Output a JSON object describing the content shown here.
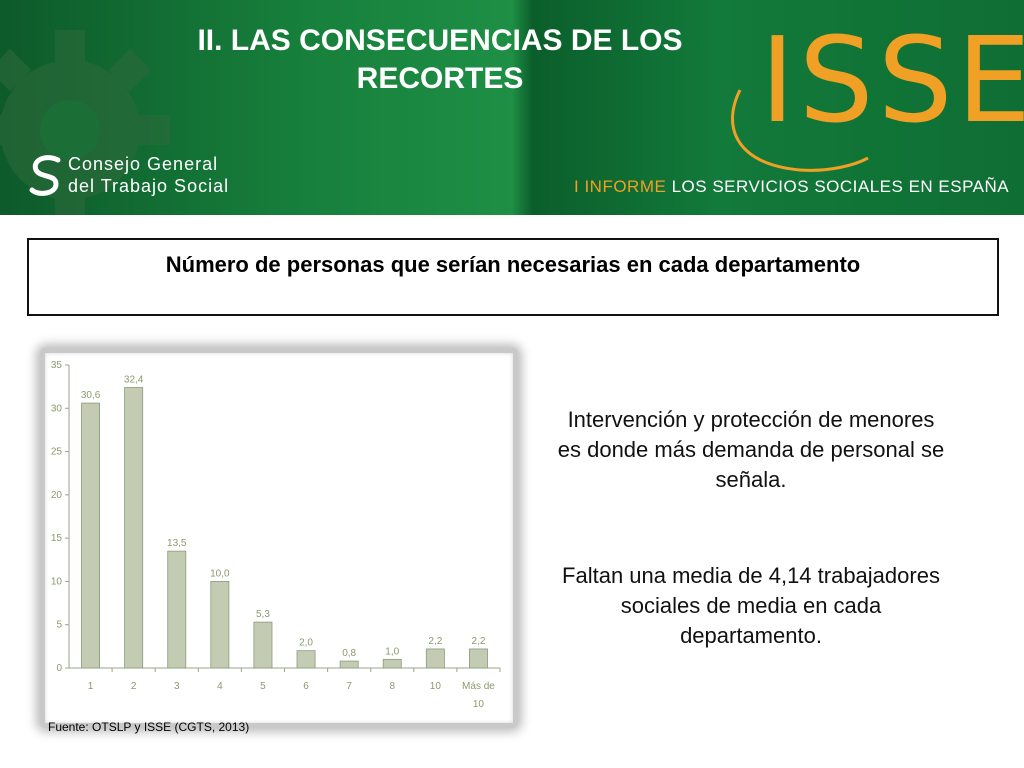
{
  "slide": {
    "title": "II. LAS CONSECUENCIAS DE LOS RECORTES",
    "subtitle": "Número de personas que serían necesarias en cada departamento",
    "notes": [
      "Intervención y protección de menores es donde más demanda de personal se señala.",
      "Faltan una media de 4,14 trabajadores sociales de media en cada departamento."
    ],
    "source": "Fuente: OTSLP y ISSE (CGTS, 2013)"
  },
  "branding": {
    "org_line1": "Consejo General",
    "org_line2": "del Trabajo Social",
    "isse": "ISSE",
    "tagline_accent": "I INFORME",
    "tagline_rest": "LOS SERVICIOS SOCIALES EN ESPAÑA",
    "colors": {
      "header_green": "#17803c",
      "accent_orange": "#f0a024",
      "bar_fill": "#c3ccb3",
      "bar_stroke": "#8c9a7b",
      "label_color": "#8a9a6b"
    }
  },
  "chart_data": {
    "type": "bar",
    "categories": [
      "1",
      "2",
      "3",
      "4",
      "5",
      "6",
      "7",
      "8",
      "10",
      "Más de 10"
    ],
    "values": [
      30.6,
      32.4,
      13.5,
      10.0,
      5.3,
      2.0,
      0.8,
      1.0,
      2.2,
      2.2
    ],
    "value_labels": [
      "30,6",
      "32,4",
      "13,5",
      "10,0",
      "5,3",
      "2,0",
      "0,8",
      "1,0",
      "2,2",
      "2,2"
    ],
    "title": "",
    "xlabel": "",
    "ylabel": "",
    "ylim": [
      0,
      35
    ],
    "yticks": [
      0,
      5,
      10,
      15,
      20,
      25,
      30,
      35
    ],
    "grid": false,
    "legend": "none"
  }
}
